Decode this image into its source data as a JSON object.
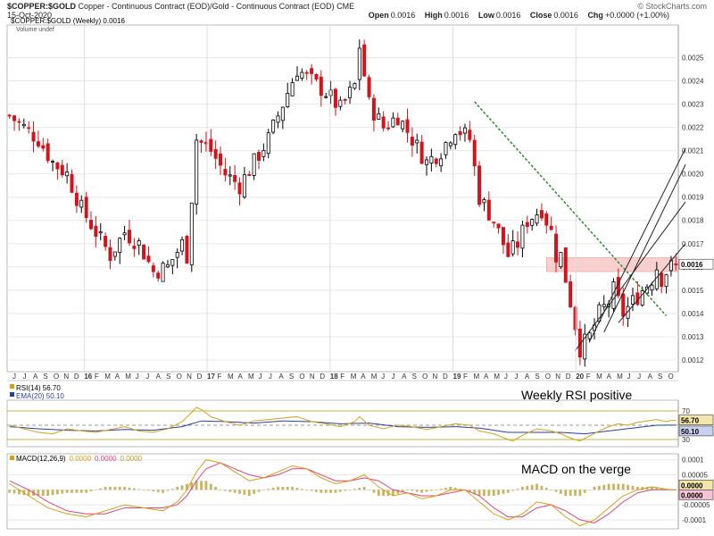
{
  "header": {
    "symbol": "$COPPER:$GOLD",
    "description": "Copper - Continuous Contract (EOD)/Gold - Continuous Contract (EOD)  CME",
    "date": "15-Oct-2020",
    "watermark": "© StockCharts.com",
    "ohlc": [
      {
        "label": "Open",
        "value": "0.0016"
      },
      {
        "label": "High",
        "value": "0.0016"
      },
      {
        "label": "Low",
        "value": "0.0016"
      },
      {
        "label": "Close",
        "value": "0.0016"
      },
      {
        "label": "Chg",
        "value": "+0.0000 (+1.00%)"
      }
    ]
  },
  "chart_data": [
    {
      "type": "candlestick",
      "panel": "price",
      "legend": [
        "$COPPER:$GOLD (Weekly) 0.0016",
        "Volume undef"
      ],
      "ylim": [
        0.00115,
        0.00264
      ],
      "y_ticks": [
        0.0012,
        0.0013,
        0.0014,
        0.0015,
        0.0016,
        0.0017,
        0.0018,
        0.0019,
        0.002,
        0.0021,
        0.0022,
        0.0023,
        0.0024,
        0.0025
      ],
      "y_tick_labels": [
        "0.0012",
        "0.0013",
        "0.0014",
        "0.0015",
        "0.0016",
        "0.0017",
        "0.0018",
        "0.0019",
        "0.0020",
        "0.0021",
        "0.0022",
        "0.0023",
        "0.0024",
        "0.0025"
      ],
      "last_value_label": "0.0016",
      "x_axis_labels": [
        "J",
        "J",
        "A",
        "S",
        "O",
        "N",
        "D",
        "16",
        "F",
        "M",
        "A",
        "M",
        "J",
        "J",
        "A",
        "S",
        "O",
        "N",
        "D",
        "17",
        "F",
        "M",
        "A",
        "M",
        "J",
        "J",
        "A",
        "S",
        "O",
        "N",
        "D",
        "18",
        "F",
        "M",
        "A",
        "M",
        "J",
        "J",
        "A",
        "S",
        "O",
        "N",
        "D",
        "19",
        "F",
        "M",
        "A",
        "M",
        "J",
        "J",
        "A",
        "S",
        "O",
        "N",
        "D",
        "20",
        "F",
        "M",
        "A",
        "M",
        "J",
        "J",
        "A",
        "S",
        "O"
      ],
      "close_path": [
        [
          0,
          0.00225
        ],
        [
          3,
          0.0022
        ],
        [
          6,
          0.00215
        ],
        [
          9,
          0.00205
        ],
        [
          12,
          0.002
        ],
        [
          15,
          0.00185
        ],
        [
          18,
          0.00175
        ],
        [
          21,
          0.00165
        ],
        [
          24,
          0.00175
        ],
        [
          27,
          0.0017
        ],
        [
          30,
          0.00158
        ],
        [
          33,
          0.0016
        ],
        [
          36,
          0.0017
        ],
        [
          37,
          0.00165
        ],
        [
          38,
          0.0019
        ],
        [
          39,
          0.00215
        ],
        [
          42,
          0.0021
        ],
        [
          45,
          0.002
        ],
        [
          48,
          0.00195
        ],
        [
          51,
          0.00205
        ],
        [
          54,
          0.00215
        ],
        [
          57,
          0.0023
        ],
        [
          60,
          0.00245
        ],
        [
          63,
          0.0024
        ],
        [
          66,
          0.00235
        ],
        [
          69,
          0.00228
        ],
        [
          72,
          0.00238
        ],
        [
          73,
          0.00255
        ],
        [
          75,
          0.0023
        ],
        [
          78,
          0.0022
        ],
        [
          81,
          0.00225
        ],
        [
          84,
          0.00215
        ],
        [
          87,
          0.00205
        ],
        [
          90,
          0.0021
        ],
        [
          93,
          0.0022
        ],
        [
          96,
          0.00215
        ],
        [
          98,
          0.0019
        ],
        [
          101,
          0.0018
        ],
        [
          104,
          0.00165
        ],
        [
          106,
          0.0017
        ],
        [
          108,
          0.0018
        ],
        [
          111,
          0.00185
        ],
        [
          113,
          0.00175
        ],
        [
          114,
          0.00165
        ],
        [
          115,
          0.00165
        ],
        [
          116,
          0.00155
        ],
        [
          117,
          0.00145
        ],
        [
          119,
          0.00125
        ],
        [
          121,
          0.0013
        ],
        [
          123,
          0.0014
        ],
        [
          125,
          0.00145
        ],
        [
          126,
          0.0015
        ],
        [
          127,
          0.00145
        ],
        [
          128,
          0.0014
        ],
        [
          130,
          0.00145
        ],
        [
          132,
          0.0015
        ],
        [
          134,
          0.00155
        ],
        [
          135,
          0.0016
        ],
        [
          136,
          0.00155
        ],
        [
          137,
          0.00158
        ],
        [
          138,
          0.0016
        ]
      ],
      "resistance_band": [
        0.00158,
        0.00164
      ],
      "green_downtrend_line": [
        [
          97,
          0.00231
        ],
        [
          137,
          0.00139
        ]
      ],
      "channel_lines": [
        [
          [
            118,
            0.00124
          ],
          [
            141,
            0.00188
          ]
        ],
        [
          [
            121,
            0.00128
          ],
          [
            141,
            0.00211
          ]
        ],
        [
          [
            124,
            0.00132
          ],
          [
            141,
            0.00204
          ]
        ],
        [
          [
            127,
            0.00136
          ],
          [
            141,
            0.0017
          ]
        ]
      ],
      "annotation": ""
    },
    {
      "type": "line",
      "panel": "rsi",
      "series": [
        {
          "name": "RSI(14) 56.70"
        },
        {
          "name": "EMA(20) 50.10"
        }
      ],
      "ylim": [
        20,
        85
      ],
      "y_ticks": [
        30,
        70
      ],
      "y_tick_labels": [
        "30",
        "70"
      ],
      "value_labels": [
        "56.70",
        "50.10"
      ],
      "rsi_path": [
        [
          0,
          50
        ],
        [
          3,
          45
        ],
        [
          6,
          40
        ],
        [
          9,
          38
        ],
        [
          12,
          45
        ],
        [
          15,
          42
        ],
        [
          18,
          40
        ],
        [
          21,
          44
        ],
        [
          24,
          48
        ],
        [
          27,
          42
        ],
        [
          30,
          40
        ],
        [
          33,
          45
        ],
        [
          36,
          55
        ],
        [
          38,
          68
        ],
        [
          39,
          75
        ],
        [
          40,
          72
        ],
        [
          42,
          62
        ],
        [
          45,
          55
        ],
        [
          48,
          50
        ],
        [
          51,
          56
        ],
        [
          54,
          58
        ],
        [
          57,
          60
        ],
        [
          60,
          62
        ],
        [
          63,
          55
        ],
        [
          66,
          52
        ],
        [
          69,
          48
        ],
        [
          72,
          55
        ],
        [
          73,
          62
        ],
        [
          75,
          50
        ],
        [
          78,
          45
        ],
        [
          81,
          50
        ],
        [
          84,
          48
        ],
        [
          87,
          44
        ],
        [
          90,
          48
        ],
        [
          93,
          52
        ],
        [
          96,
          50
        ],
        [
          98,
          42
        ],
        [
          101,
          38
        ],
        [
          104,
          30
        ],
        [
          105,
          28
        ],
        [
          107,
          36
        ],
        [
          110,
          45
        ],
        [
          113,
          42
        ],
        [
          115,
          38
        ],
        [
          117,
          32
        ],
        [
          119,
          28
        ],
        [
          121,
          35
        ],
        [
          123,
          42
        ],
        [
          125,
          48
        ],
        [
          127,
          52
        ],
        [
          129,
          50
        ],
        [
          131,
          54
        ],
        [
          133,
          56
        ],
        [
          135,
          58
        ],
        [
          137,
          55
        ],
        [
          138,
          56.7
        ]
      ],
      "ema_path": [
        [
          0,
          48
        ],
        [
          6,
          45
        ],
        [
          12,
          43
        ],
        [
          18,
          42
        ],
        [
          24,
          44
        ],
        [
          30,
          43
        ],
        [
          36,
          48
        ],
        [
          40,
          56
        ],
        [
          45,
          55
        ],
        [
          51,
          53
        ],
        [
          57,
          56
        ],
        [
          63,
          55
        ],
        [
          69,
          52
        ],
        [
          75,
          53
        ],
        [
          81,
          48
        ],
        [
          87,
          47
        ],
        [
          93,
          48
        ],
        [
          98,
          46
        ],
        [
          104,
          40
        ],
        [
          110,
          40
        ],
        [
          115,
          40
        ],
        [
          120,
          38
        ],
        [
          125,
          42
        ],
        [
          130,
          46
        ],
        [
          135,
          50
        ],
        [
          138,
          50.1
        ]
      ],
      "annotation": "Weekly RSI positive"
    },
    {
      "type": "line",
      "panel": "macd",
      "series": [
        {
          "name": "MACD(12,26,9)"
        }
      ],
      "legend_values": [
        "0.0000",
        "0.0000",
        "0.0000"
      ],
      "ylim": [
        -0.00013,
        0.00012
      ],
      "y_ticks": [
        0.0001,
        5e-05,
        0,
        -5e-05,
        -0.0001
      ],
      "y_tick_labels": [
        "0.0001",
        "0.00005",
        "0.0000",
        "-0.00005",
        "-0.0001"
      ],
      "value_labels": [
        "0.0000",
        "0.0000"
      ],
      "macd_path": [
        [
          0,
          2e-05
        ],
        [
          4,
          -2e-05
        ],
        [
          8,
          -6e-05
        ],
        [
          12,
          -8e-05
        ],
        [
          16,
          -9e-05
        ],
        [
          20,
          -7e-05
        ],
        [
          24,
          -5e-05
        ],
        [
          28,
          -6e-05
        ],
        [
          32,
          -7e-05
        ],
        [
          35,
          -4e-05
        ],
        [
          37,
          0.0
        ],
        [
          39,
          6e-05
        ],
        [
          41,
          0.0001
        ],
        [
          44,
          9e-05
        ],
        [
          47,
          6e-05
        ],
        [
          50,
          3e-05
        ],
        [
          53,
          4e-05
        ],
        [
          56,
          6e-05
        ],
        [
          59,
          8e-05
        ],
        [
          62,
          7e-05
        ],
        [
          65,
          4e-05
        ],
        [
          68,
          2e-05
        ],
        [
          71,
          3e-05
        ],
        [
          74,
          5e-05
        ],
        [
          77,
          1e-05
        ],
        [
          80,
          -2e-05
        ],
        [
          83,
          -1e-05
        ],
        [
          86,
          -3e-05
        ],
        [
          89,
          -2e-05
        ],
        [
          92,
          0.0
        ],
        [
          95,
          0.0
        ],
        [
          98,
          -4e-05
        ],
        [
          101,
          -8e-05
        ],
        [
          104,
          -0.0001
        ],
        [
          107,
          -8e-05
        ],
        [
          110,
          -4e-05
        ],
        [
          113,
          -5e-05
        ],
        [
          116,
          -9e-05
        ],
        [
          119,
          -0.00012
        ],
        [
          122,
          -0.0001
        ],
        [
          125,
          -6e-05
        ],
        [
          128,
          -2e-05
        ],
        [
          131,
          0.0
        ],
        [
          134,
          1e-05
        ],
        [
          138,
          0.0
        ]
      ],
      "signal_path": [
        [
          0,
          3e-05
        ],
        [
          4,
          0.0
        ],
        [
          8,
          -4e-05
        ],
        [
          12,
          -7e-05
        ],
        [
          16,
          -8e-05
        ],
        [
          20,
          -8e-05
        ],
        [
          24,
          -6e-05
        ],
        [
          28,
          -6e-05
        ],
        [
          32,
          -6e-05
        ],
        [
          35,
          -5e-05
        ],
        [
          37,
          -2e-05
        ],
        [
          39,
          3e-05
        ],
        [
          41,
          7e-05
        ],
        [
          44,
          9e-05
        ],
        [
          47,
          7e-05
        ],
        [
          50,
          5e-05
        ],
        [
          53,
          4e-05
        ],
        [
          56,
          5e-05
        ],
        [
          59,
          7e-05
        ],
        [
          62,
          7e-05
        ],
        [
          65,
          5e-05
        ],
        [
          68,
          3e-05
        ],
        [
          71,
          3e-05
        ],
        [
          74,
          4e-05
        ],
        [
          77,
          3e-05
        ],
        [
          80,
          0.0
        ],
        [
          83,
          -1e-05
        ],
        [
          86,
          -2e-05
        ],
        [
          89,
          -2e-05
        ],
        [
          92,
          -1e-05
        ],
        [
          95,
          0.0
        ],
        [
          98,
          -2e-05
        ],
        [
          101,
          -6e-05
        ],
        [
          104,
          -9e-05
        ],
        [
          107,
          -9e-05
        ],
        [
          110,
          -6e-05
        ],
        [
          113,
          -5e-05
        ],
        [
          116,
          -7e-05
        ],
        [
          119,
          -0.0001
        ],
        [
          122,
          -0.00011
        ],
        [
          125,
          -8e-05
        ],
        [
          128,
          -4e-05
        ],
        [
          131,
          -1e-05
        ],
        [
          134,
          0.0
        ],
        [
          138,
          0.0
        ]
      ],
      "annotation": "MACD on the verge"
    }
  ],
  "colors": {
    "up": "#000000",
    "down": "#d4131b",
    "grid": "#e8e8e8",
    "axis": "#888888",
    "band": "#f7c5c5",
    "band_edge": "#e88080",
    "downtrend": "#2e8b2e",
    "channel": "#222222",
    "rsi": "#d4a017",
    "ema": "#2a3f9e",
    "rsi_ref": "#c9b04a",
    "macd": "#d4a017",
    "signal": "#e0457b",
    "hist": "#b89a2a"
  }
}
